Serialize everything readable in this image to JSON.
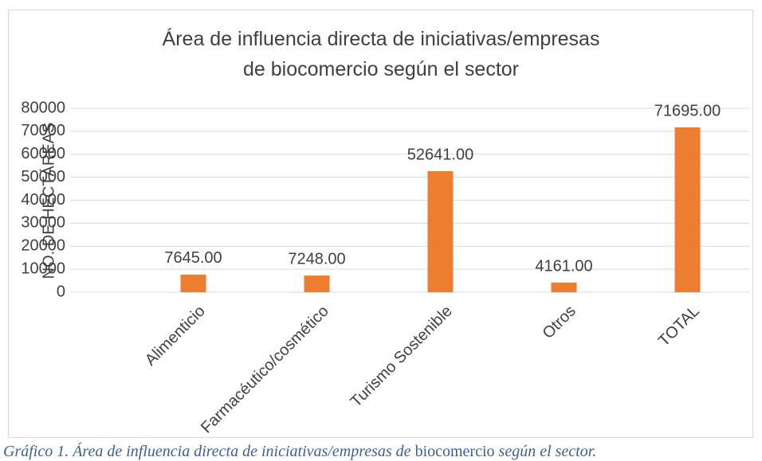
{
  "chart_data": {
    "type": "bar",
    "title": "Área de influencia directa de iniciativas/empresas de biocomercio según el sector",
    "y_label": "NO. DE HECTÁREAS",
    "categories": [
      "Alimenticio",
      "Farmacéutico/cosmético",
      "Turismo Sostenible",
      "Otros",
      "TOTAL"
    ],
    "values": [
      7645,
      7248,
      52641,
      4161,
      71695
    ],
    "value_labels": [
      "7645.00",
      "7248.00",
      "52641.00",
      "4161.00",
      "71695.00"
    ],
    "color": "#ed7d31",
    "ylim": [
      0,
      80000
    ],
    "yticks": [
      0,
      10000,
      20000,
      30000,
      40000,
      50000,
      60000,
      70000,
      80000
    ],
    "grid": true
  },
  "caption": [
    {
      "text": "Gráfico 1. Área de influencia directa de iniciativas/empresas de ",
      "italic": true
    },
    {
      "text": "biocomercio",
      "italic": false
    },
    {
      "text": " según el sector.",
      "italic": true
    }
  ]
}
